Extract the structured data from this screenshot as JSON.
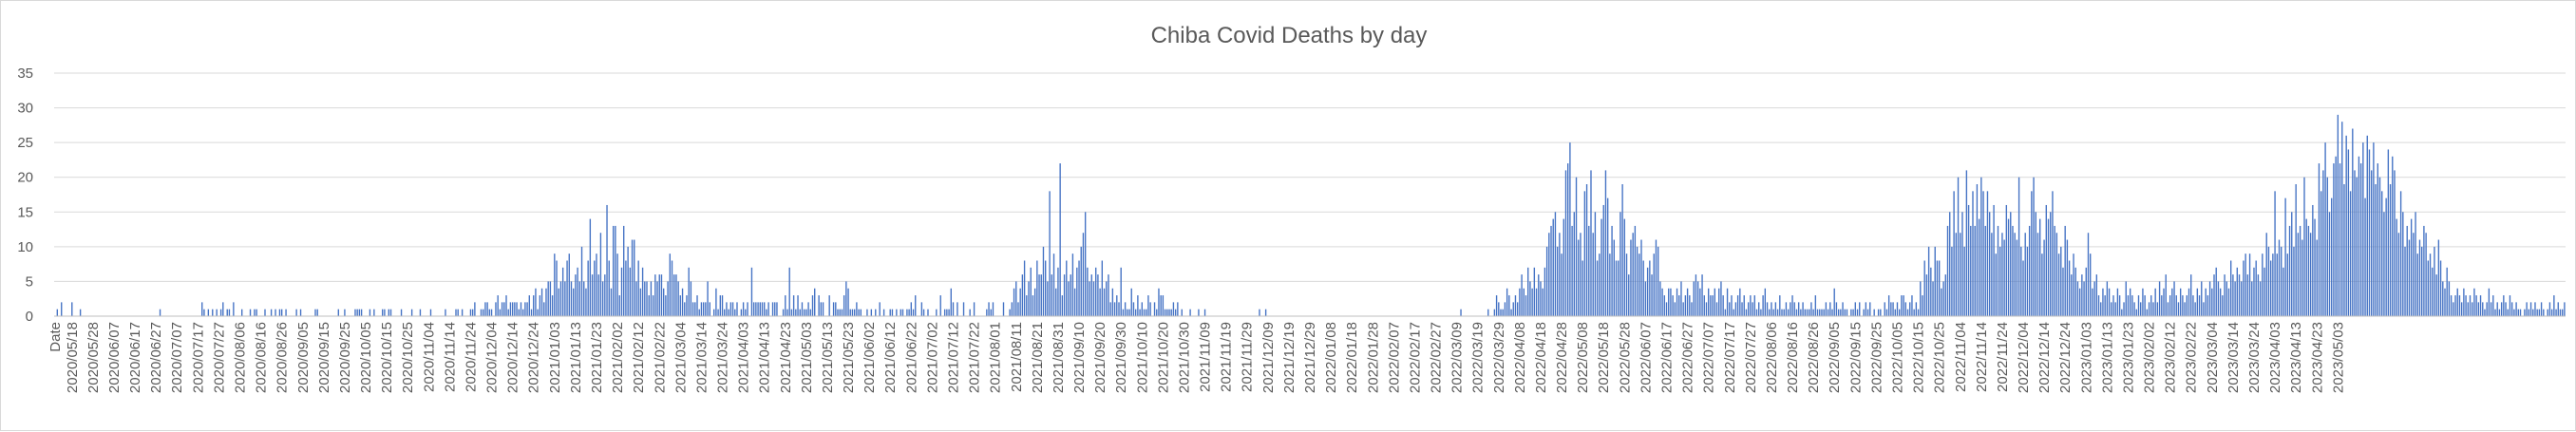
{
  "chart_data": {
    "type": "bar",
    "title": "Chiba Covid Deaths by day",
    "xlabel": "",
    "ylabel": "",
    "first_category_label": "Date",
    "ylim": [
      0,
      35
    ],
    "yticks": [
      0,
      5,
      10,
      15,
      20,
      25,
      30,
      35
    ],
    "grid": "horizontal",
    "color": "#4472c4",
    "x_tick_labels": [
      "2020/05/18",
      "2020/05/28",
      "2020/06/07",
      "2020/06/17",
      "2020/06/27",
      "2020/07/07",
      "2020/07/17",
      "2020/07/27",
      "2020/08/06",
      "2020/08/16",
      "2020/08/26",
      "2020/09/05",
      "2020/09/15",
      "2020/09/25",
      "2020/10/05",
      "2020/10/15",
      "2020/10/25",
      "2020/11/04",
      "2020/11/14",
      "2020/11/24",
      "2020/12/04",
      "2020/12/14",
      "2020/12/24",
      "2021/01/03",
      "2021/01/13",
      "2021/01/23",
      "2021/02/02",
      "2021/02/12",
      "2021/02/22",
      "2021/03/04",
      "2021/03/14",
      "2021/03/24",
      "2021/04/03",
      "2021/04/13",
      "2021/04/23",
      "2021/05/03",
      "2021/05/13",
      "2021/05/23",
      "2021/06/02",
      "2021/06/12",
      "2021/06/22",
      "2021/07/02",
      "2021/07/12",
      "2021/07/22",
      "2021/08/01",
      "2021/08/11",
      "2021/08/21",
      "2021/08/31",
      "2021/09/10",
      "2021/09/20",
      "2021/09/30",
      "2021/10/10",
      "2021/10/20",
      "2021/10/30",
      "2021/11/09",
      "2021/11/19",
      "2021/11/29",
      "2021/12/09",
      "2021/12/19",
      "2021/12/29",
      "2022/01/08",
      "2022/01/18",
      "2022/01/28",
      "2022/02/07",
      "2022/02/17",
      "2022/02/27",
      "2022/03/09",
      "2022/03/19",
      "2022/03/29",
      "2022/04/08",
      "2022/04/18",
      "2022/04/28",
      "2022/05/08",
      "2022/05/18",
      "2022/05/28",
      "2022/06/07",
      "2022/06/17",
      "2022/06/27",
      "2022/07/07",
      "2022/07/17",
      "2022/07/27",
      "2022/08/06",
      "2022/08/16",
      "2022/08/26",
      "2022/09/05",
      "2022/09/15",
      "2022/09/25",
      "2022/10/05",
      "2022/10/15",
      "2022/10/25",
      "2022/11/04",
      "2022/11/14",
      "2022/11/24",
      "2022/12/04",
      "2022/12/14",
      "2022/12/24",
      "2023/01/03",
      "2023/01/13",
      "2023/01/23",
      "2023/02/02",
      "2023/02/12",
      "2023/02/22",
      "2023/03/04",
      "2023/03/14",
      "2023/03/24",
      "2023/04/03",
      "2023/04/13",
      "2023/04/23",
      "2023/05/03"
    ],
    "series": [
      {
        "values": [
          0,
          1,
          0,
          2,
          0,
          0,
          0,
          0,
          2,
          0,
          0,
          0,
          1,
          0,
          0,
          0,
          0,
          0,
          0,
          0,
          0,
          0,
          0,
          0,
          0,
          0,
          0,
          0,
          0,
          0,
          0,
          0,
          0,
          0,
          0,
          0,
          0,
          0,
          0,
          0,
          0,
          0,
          0,
          0,
          0,
          0,
          0,
          0,
          0,
          0,
          1,
          0,
          0,
          0,
          0,
          0,
          0,
          0,
          0,
          0,
          0,
          0,
          0,
          0,
          0,
          0,
          0,
          0,
          0,
          0,
          2,
          1,
          0,
          1,
          0,
          1,
          0,
          1,
          0,
          1,
          2,
          0,
          1,
          1,
          0,
          2,
          0,
          0,
          0,
          1,
          0,
          0,
          0,
          1,
          0,
          1,
          1,
          0,
          0,
          0,
          1,
          0,
          0,
          1,
          0,
          1,
          0,
          1,
          1,
          0,
          1,
          0,
          0,
          0,
          0,
          1,
          0,
          1,
          0,
          0,
          0,
          0,
          0,
          0,
          1,
          1,
          0,
          0,
          0,
          0,
          0,
          0,
          0,
          0,
          0,
          1,
          0,
          0,
          1,
          0,
          0,
          0,
          0,
          1,
          1,
          1,
          1,
          0,
          0,
          0,
          1,
          0,
          1,
          0,
          0,
          0,
          1,
          1,
          0,
          1,
          1,
          0,
          0,
          0,
          0,
          1,
          0,
          0,
          0,
          0,
          1,
          0,
          0,
          0,
          1,
          0,
          0,
          0,
          0,
          1,
          0,
          0,
          0,
          0,
          0,
          0,
          1,
          0,
          0,
          0,
          0,
          1,
          1,
          0,
          1,
          0,
          0,
          0,
          1,
          1,
          2,
          0,
          0,
          1,
          1,
          2,
          2,
          1,
          1,
          0,
          2,
          3,
          1,
          2,
          2,
          3,
          1,
          2,
          2,
          2,
          2,
          1,
          2,
          1,
          2,
          2,
          3,
          1,
          3,
          4,
          1,
          3,
          4,
          2,
          4,
          5,
          5,
          3,
          9,
          8,
          4,
          5,
          7,
          5,
          8,
          9,
          5,
          4,
          6,
          7,
          5,
          10,
          5,
          4,
          8,
          14,
          6,
          8,
          9,
          6,
          12,
          5,
          6,
          16,
          8,
          4,
          13,
          13,
          9,
          3,
          7,
          13,
          8,
          10,
          7,
          11,
          11,
          5,
          8,
          4,
          7,
          5,
          5,
          3,
          5,
          3,
          6,
          5,
          6,
          6,
          4,
          3,
          5,
          9,
          8,
          6,
          6,
          5,
          3,
          4,
          2,
          3,
          7,
          5,
          2,
          2,
          3,
          1,
          2,
          2,
          2,
          5,
          2,
          0,
          1,
          4,
          1,
          3,
          3,
          1,
          2,
          1,
          2,
          2,
          1,
          2,
          0,
          1,
          2,
          1,
          2,
          0,
          7,
          2,
          2,
          2,
          2,
          2,
          2,
          1,
          2,
          0,
          2,
          2,
          2,
          0,
          0,
          1,
          3,
          1,
          7,
          1,
          3,
          1,
          3,
          1,
          2,
          1,
          1,
          2,
          1,
          3,
          4,
          0,
          3,
          2,
          2,
          0,
          0,
          3,
          0,
          2,
          2,
          1,
          1,
          1,
          3,
          5,
          4,
          1,
          1,
          1,
          2,
          1,
          1,
          0,
          0,
          1,
          0,
          1,
          0,
          1,
          0,
          2,
          0,
          1,
          0,
          0,
          1,
          1,
          0,
          1,
          0,
          1,
          1,
          0,
          1,
          1,
          2,
          1,
          3,
          0,
          0,
          2,
          1,
          0,
          1,
          0,
          0,
          0,
          1,
          0,
          3,
          0,
          1,
          1,
          1,
          4,
          2,
          0,
          2,
          0,
          0,
          2,
          0,
          0,
          1,
          0,
          2,
          0,
          0,
          0,
          0,
          0,
          1,
          2,
          1,
          2,
          0,
          0,
          0,
          0,
          2,
          0,
          0,
          1,
          2,
          4,
          5,
          2,
          4,
          6,
          8,
          3,
          5,
          7,
          3,
          4,
          8,
          6,
          6,
          10,
          8,
          5,
          18,
          6,
          9,
          4,
          7,
          22,
          3,
          6,
          8,
          5,
          6,
          9,
          4,
          7,
          8,
          10,
          12,
          15,
          7,
          5,
          6,
          5,
          7,
          6,
          4,
          8,
          4,
          5,
          6,
          2,
          4,
          2,
          3,
          2,
          7,
          1,
          2,
          1,
          1,
          4,
          2,
          1,
          3,
          1,
          2,
          1,
          1,
          3,
          2,
          0,
          2,
          1,
          4,
          3,
          3,
          1,
          1,
          1,
          1,
          2,
          1,
          2,
          0,
          1,
          0,
          0,
          0,
          1,
          0,
          0,
          0,
          1,
          0,
          0,
          1,
          0,
          0,
          0,
          0,
          0,
          0,
          0,
          0,
          0,
          0,
          0,
          0,
          0,
          0,
          0,
          0,
          0,
          0,
          0,
          0,
          0,
          0,
          0,
          0,
          0,
          1,
          0,
          0,
          1,
          0,
          0,
          0,
          0,
          0,
          0,
          0,
          0,
          0,
          0,
          0,
          0,
          0,
          0,
          0,
          0,
          0,
          0,
          0,
          0,
          0,
          0,
          0,
          0,
          0,
          0,
          0,
          0,
          0,
          0,
          0,
          0,
          0,
          0,
          0,
          0,
          0,
          0,
          0,
          0,
          0,
          0,
          0,
          0,
          0,
          0,
          0,
          0,
          0,
          0,
          0,
          0,
          0,
          0,
          0,
          0,
          0,
          0,
          0,
          0,
          0,
          0,
          0,
          0,
          0,
          0,
          0,
          0,
          0,
          0,
          0,
          0,
          0,
          0,
          0,
          0,
          0,
          0,
          0,
          0,
          0,
          0,
          0,
          0,
          0,
          0,
          0,
          0,
          0,
          0,
          0,
          0,
          1,
          0,
          0,
          0,
          0,
          0,
          0,
          0,
          0,
          0,
          0,
          0,
          0,
          1,
          0,
          0,
          1,
          3,
          2,
          1,
          1,
          2,
          4,
          3,
          1,
          2,
          3,
          2,
          4,
          6,
          4,
          3,
          7,
          5,
          4,
          7,
          4,
          6,
          5,
          4,
          7,
          10,
          12,
          13,
          14,
          15,
          10,
          12,
          9,
          14,
          21,
          22,
          25,
          13,
          15,
          20,
          11,
          12,
          8,
          18,
          19,
          13,
          21,
          12,
          15,
          8,
          9,
          14,
          16,
          21,
          17,
          9,
          13,
          11,
          8,
          8,
          15,
          19,
          14,
          9,
          6,
          11,
          12,
          13,
          10,
          9,
          11,
          8,
          5,
          7,
          8,
          6,
          9,
          11,
          10,
          5,
          4,
          3,
          2,
          4,
          4,
          3,
          2,
          4,
          3,
          5,
          2,
          3,
          4,
          3,
          2,
          5,
          6,
          5,
          4,
          6,
          3,
          2,
          4,
          3,
          3,
          4,
          2,
          4,
          5,
          3,
          1,
          4,
          2,
          3,
          1,
          2,
          3,
          4,
          2,
          3,
          1,
          2,
          3,
          2,
          3,
          1,
          2,
          1,
          3,
          4,
          2,
          1,
          2,
          1,
          2,
          1,
          3,
          1,
          1,
          2,
          1,
          2,
          3,
          2,
          1,
          2,
          1,
          2,
          1,
          1,
          1,
          2,
          1,
          3,
          1,
          1,
          1,
          1,
          2,
          1,
          2,
          1,
          4,
          2,
          1,
          1,
          2,
          1,
          1,
          0,
          1,
          1,
          2,
          1,
          2,
          0,
          1,
          2,
          1,
          2,
          0,
          1,
          0,
          1,
          1,
          0,
          2,
          1,
          3,
          2,
          2,
          1,
          2,
          1,
          3,
          3,
          2,
          1,
          2,
          3,
          1,
          2,
          1,
          5,
          3,
          8,
          6,
          10,
          7,
          5,
          10,
          8,
          8,
          4,
          5,
          6,
          13,
          15,
          10,
          18,
          12,
          20,
          12,
          15,
          10,
          21,
          16,
          13,
          18,
          13,
          19,
          14,
          20,
          18,
          13,
          18,
          15,
          12,
          16,
          9,
          13,
          10,
          12,
          11,
          16,
          14,
          15,
          13,
          12,
          11,
          20,
          10,
          8,
          12,
          10,
          13,
          18,
          20,
          15,
          12,
          14,
          9,
          11,
          16,
          14,
          15,
          18,
          13,
          12,
          9,
          10,
          7,
          13,
          11,
          8,
          6,
          9,
          7,
          5,
          4,
          6,
          5,
          7,
          12,
          9,
          4,
          5,
          6,
          3,
          2,
          4,
          3,
          5,
          4,
          2,
          3,
          2,
          4,
          3,
          1,
          2,
          5,
          3,
          4,
          3,
          2,
          1,
          3,
          2,
          4,
          3,
          1,
          2,
          3,
          2,
          4,
          2,
          5,
          3,
          4,
          6,
          2,
          3,
          4,
          5,
          3,
          2,
          4,
          3,
          2,
          3,
          4,
          6,
          3,
          2,
          4,
          3,
          5,
          2,
          4,
          3,
          5,
          4,
          6,
          7,
          5,
          4,
          3,
          6,
          5,
          4,
          8,
          6,
          5,
          7,
          6,
          5,
          8,
          9,
          6,
          9,
          5,
          7,
          8,
          6,
          5,
          9,
          7,
          12,
          10,
          8,
          9,
          18,
          9,
          11,
          10,
          7,
          17,
          9,
          13,
          15,
          10,
          19,
          12,
          13,
          11,
          20,
          14,
          13,
          12,
          16,
          14,
          11,
          22,
          18,
          21,
          25,
          20,
          15,
          17,
          22,
          23,
          29,
          22,
          28,
          19,
          26,
          24,
          18,
          27,
          21,
          20,
          23,
          22,
          25,
          17,
          26,
          24,
          21,
          25,
          19,
          22,
          20,
          18,
          15,
          17,
          24,
          19,
          23,
          21,
          14,
          12,
          18,
          15,
          10,
          13,
          11,
          14,
          12,
          15,
          9,
          11,
          10,
          13,
          12,
          8,
          9,
          7,
          10,
          6,
          11,
          8,
          5,
          4,
          7,
          5,
          3,
          2,
          3,
          4,
          3,
          2,
          4,
          3,
          2,
          3,
          2,
          4,
          3,
          2,
          3,
          2,
          1,
          2,
          4,
          2,
          3,
          1,
          2,
          1,
          2,
          3,
          2,
          1,
          3,
          2,
          1,
          2,
          1,
          1,
          0,
          1,
          2,
          1,
          2,
          1,
          2,
          1,
          1,
          2,
          1,
          0,
          1,
          2,
          1,
          3,
          1,
          2,
          1,
          1,
          2
        ]
      }
    ]
  }
}
